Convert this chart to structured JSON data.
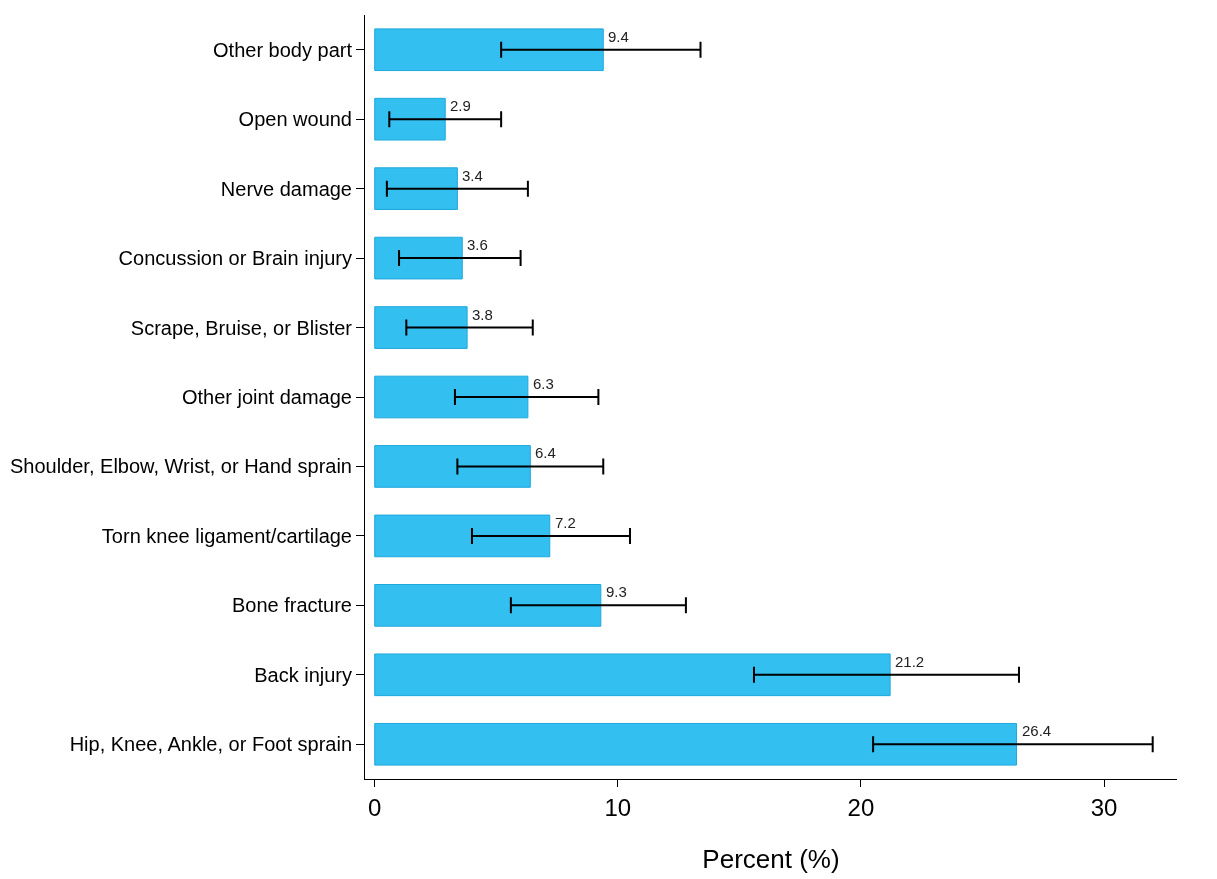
{
  "chart_data": {
    "type": "bar",
    "orientation": "horizontal",
    "xlabel": "Percent (%)",
    "categories": [
      "Other body part",
      "Open wound",
      "Nerve damage",
      "Concussion or Brain injury",
      "Scrape, Bruise, or Blister",
      "Other joint damage",
      "Shoulder, Elbow, Wrist, or Hand sprain",
      "Torn knee ligament/cartilage",
      "Bone fracture",
      "Back injury",
      "Hip, Knee, Ankle, or Foot sprain"
    ],
    "values": [
      9.4,
      2.9,
      3.4,
      3.6,
      3.8,
      6.3,
      6.4,
      7.2,
      9.3,
      21.2,
      26.4
    ],
    "errors": [
      [
        5.2,
        13.4
      ],
      [
        0.6,
        5.2
      ],
      [
        0.5,
        6.3
      ],
      [
        1.0,
        6.0
      ],
      [
        1.3,
        6.5
      ],
      [
        3.3,
        9.2
      ],
      [
        3.4,
        9.4
      ],
      [
        4.0,
        10.5
      ],
      [
        5.6,
        12.8
      ],
      [
        15.6,
        26.5
      ],
      [
        20.5,
        32.0
      ]
    ],
    "color": "#33bff0",
    "data_labels": true,
    "xlim": [
      -0.4,
      33.0
    ],
    "xticks": [
      0,
      10,
      20,
      30
    ]
  }
}
